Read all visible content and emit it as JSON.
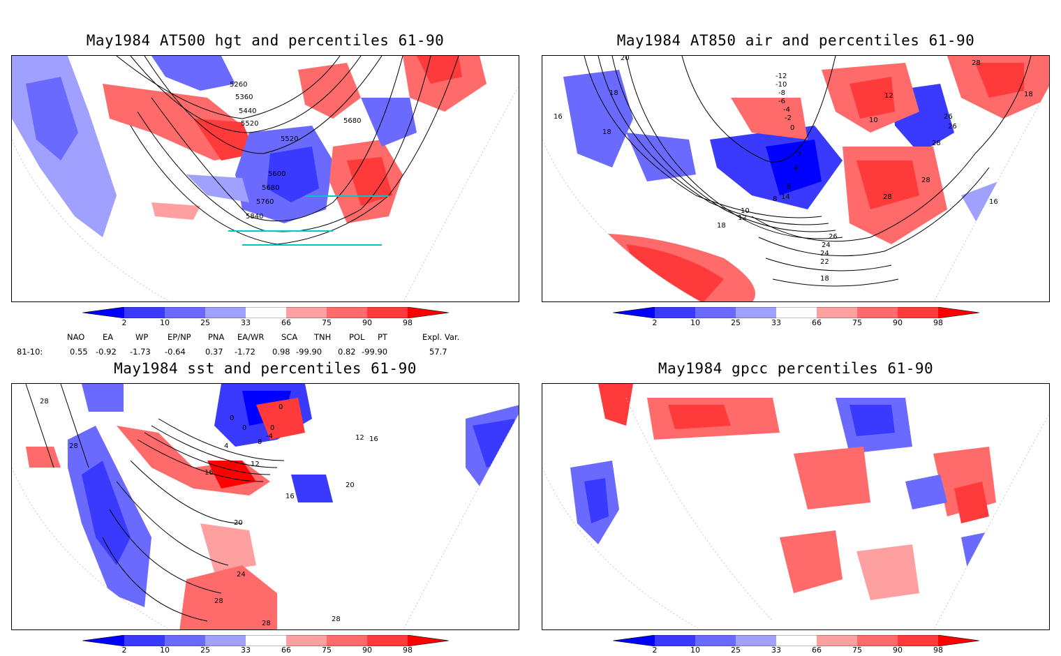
{
  "panels": [
    {
      "title": "May1984 AT500 hgt and percentiles 61-90",
      "contour_labels": [
        "5260",
        "5360",
        "5440",
        "5520",
        "5520",
        "5600",
        "5680",
        "5760",
        "5840",
        "5680"
      ]
    },
    {
      "title": "May1984 AT850 air and percentiles 61-90",
      "contour_labels": [
        "-12",
        "-10",
        "-8",
        "-6",
        "-4",
        "-2",
        "0",
        "2",
        "4",
        "6",
        "8",
        "10",
        "12",
        "14",
        "16",
        "18",
        "18",
        "18",
        "18",
        "18",
        "20",
        "22",
        "24",
        "24",
        "26",
        "26",
        "26",
        "28",
        "28",
        "28",
        "12",
        "10",
        "16",
        "28",
        "16"
      ]
    },
    {
      "title": "May1984 sst and percentiles 61-90",
      "contour_labels": [
        "28",
        "28",
        "0",
        "0",
        "0",
        "4",
        "8",
        "12",
        "16",
        "-4",
        "0",
        "20",
        "24",
        "28",
        "28",
        "28",
        "16",
        "20",
        "12",
        "16"
      ]
    },
    {
      "title": "May1984 gpcc percentiles 61-90",
      "contour_labels": []
    }
  ],
  "colorbar": {
    "labels": [
      "2",
      "10",
      "25",
      "33",
      "66",
      "75",
      "90",
      "98"
    ],
    "colors": [
      "#0000ff",
      "#3a3aff",
      "#6a6aff",
      "#a0a0ff",
      "#ffffff",
      "#ffa0a0",
      "#ff6a6a",
      "#ff3a3a",
      "#ff0000"
    ]
  },
  "indices": {
    "headers": [
      "NAO",
      "EA",
      "WP",
      "EP/NP",
      "PNA",
      "EA/WR",
      "SCA",
      "TNH",
      "POL",
      "PT",
      "Expl. Var."
    ],
    "row_label": "81-10:",
    "values": [
      "0.55",
      "-0.92",
      "-1.73",
      "-0.64",
      "0.37",
      "-1.72",
      "0.98",
      "-99.90",
      "0.82",
      "-99.90",
      "57.7"
    ]
  }
}
